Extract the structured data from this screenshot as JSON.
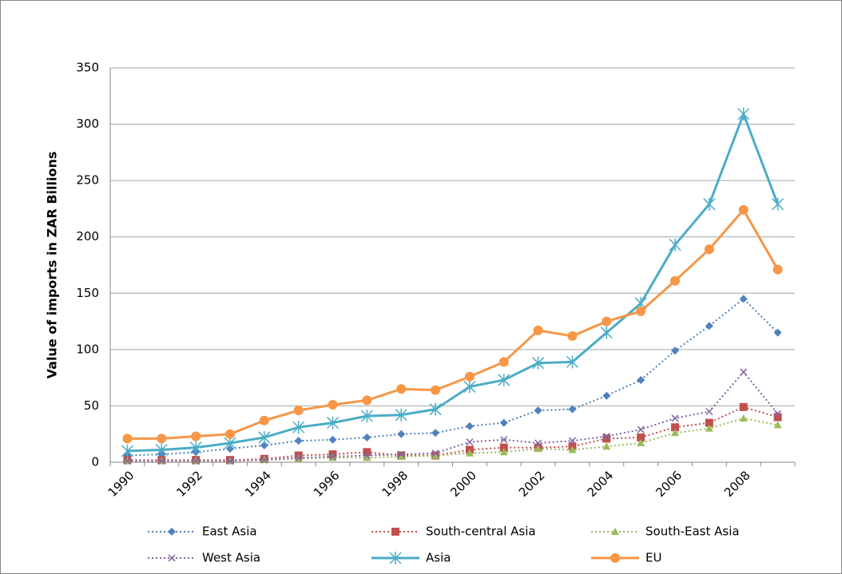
{
  "chart_data": {
    "type": "line",
    "y_label": "Value of imports in ZAR Billions",
    "categories": [
      "1990",
      null,
      "1992",
      null,
      "1994",
      null,
      "1996",
      null,
      "1998",
      null,
      "2000",
      null,
      "2002",
      null,
      "2004",
      null,
      "2006",
      null,
      "2008",
      null
    ],
    "ylim": [
      0,
      350
    ],
    "yticks": [
      0,
      50,
      100,
      150,
      200,
      250,
      300,
      350
    ],
    "grid": true,
    "legend": "bottom",
    "series": [
      {
        "name": "East Asia",
        "color": "#4f81bd",
        "line": "dotted",
        "marker": "diamond",
        "values": [
          6,
          7,
          9,
          12,
          15,
          19,
          20,
          22,
          25,
          26,
          32,
          35,
          46,
          47,
          59,
          73,
          99,
          121,
          145,
          115
        ]
      },
      {
        "name": "South-central Asia",
        "color": "#c0504d",
        "line": "dotted",
        "marker": "square",
        "values": [
          2,
          2,
          2,
          2,
          3,
          6,
          7,
          9,
          6,
          6,
          11,
          13,
          13,
          14,
          21,
          22,
          31,
          35,
          49,
          40
        ]
      },
      {
        "name": "South-East Asia",
        "color": "#9bbb59",
        "line": "dotted",
        "marker": "triangle",
        "values": [
          1,
          1,
          1,
          1,
          2,
          3,
          4,
          4,
          5,
          6,
          8,
          9,
          12,
          11,
          14,
          17,
          26,
          30,
          39,
          33
        ]
      },
      {
        "name": "West Asia",
        "color": "#8064a2",
        "line": "dotted",
        "marker": "x",
        "values": [
          1,
          1,
          1,
          1,
          2,
          4,
          5,
          6,
          7,
          8,
          18,
          20,
          17,
          19,
          23,
          29,
          39,
          45,
          80,
          43
        ]
      },
      {
        "name": "Asia",
        "color": "#4bacc6",
        "line": "solid",
        "marker": "asterisk",
        "values": [
          10,
          11,
          13,
          17,
          22,
          31,
          35,
          41,
          42,
          47,
          67,
          73,
          88,
          89,
          115,
          141,
          193,
          229,
          309,
          229
        ]
      },
      {
        "name": "EU",
        "color": "#f79646",
        "line": "solid",
        "marker": "circle",
        "values": [
          21,
          21,
          23,
          25,
          37,
          46,
          51,
          55,
          65,
          64,
          76,
          89,
          117,
          112,
          125,
          134,
          161,
          189,
          224,
          171
        ]
      }
    ]
  }
}
